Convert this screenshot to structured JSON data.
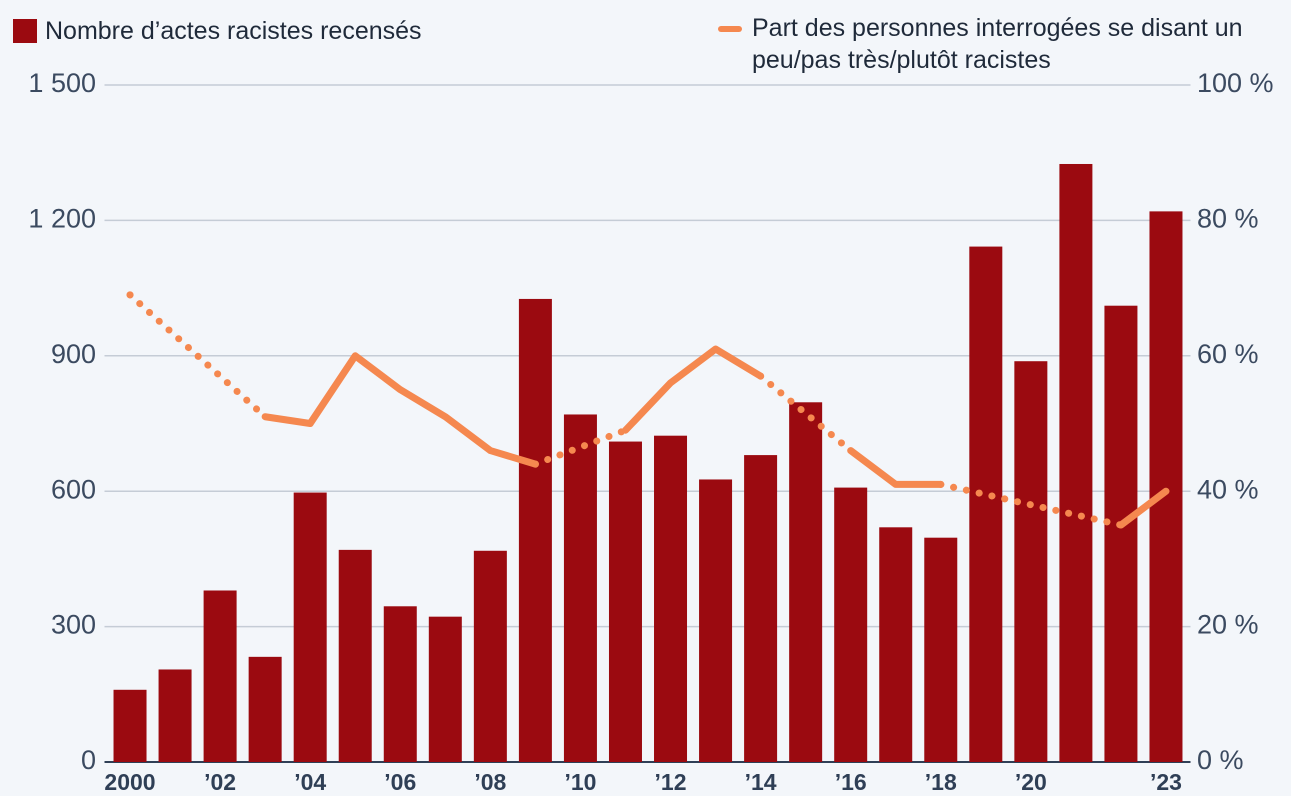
{
  "chart_data": {
    "type": "bar+line",
    "categories": [
      "2000",
      null,
      "’02",
      null,
      "’04",
      null,
      "’06",
      null,
      "’08",
      null,
      "’10",
      null,
      "’12",
      null,
      "’14",
      null,
      "’16",
      null,
      "’18",
      null,
      "’20",
      null,
      null,
      "’23"
    ],
    "series": [
      {
        "name": "Nombre d’actes racistes recensés",
        "type": "bar",
        "color": "#9b0a10",
        "values": [
          160,
          205,
          380,
          233,
          597,
          470,
          345,
          322,
          468,
          1026,
          770,
          710,
          723,
          626,
          680,
          797,
          608,
          520,
          497,
          1142,
          888,
          1325,
          1011,
          1220
        ]
      },
      {
        "name": "Part des personnes interrogées se disant un peu/pas très/plutôt racistes",
        "type": "line",
        "axis": "y2",
        "color": "#f5884f",
        "values": [
          69,
          null,
          null,
          51,
          50,
          60,
          55,
          51,
          46,
          44,
          null,
          49,
          56,
          61,
          57,
          null,
          46,
          41,
          41,
          null,
          null,
          null,
          35,
          40
        ]
      }
    ],
    "ylim": [
      0,
      1500
    ],
    "yticks": [
      0,
      300,
      600,
      900,
      {
        "value": 1200,
        "label": "1 200"
      },
      {
        "value": 1500,
        "label": "1 500"
      }
    ],
    "y2lim": [
      0,
      100
    ],
    "y2ticks": [
      {
        "value": 0,
        "label": "0 %"
      },
      {
        "value": 20,
        "label": "20 %"
      },
      {
        "value": 40,
        "label": "40 %"
      },
      {
        "value": 60,
        "label": "60 %"
      },
      {
        "value": 80,
        "label": "80 %"
      },
      {
        "value": 100,
        "label": "100 %"
      }
    ],
    "grid": true
  }
}
